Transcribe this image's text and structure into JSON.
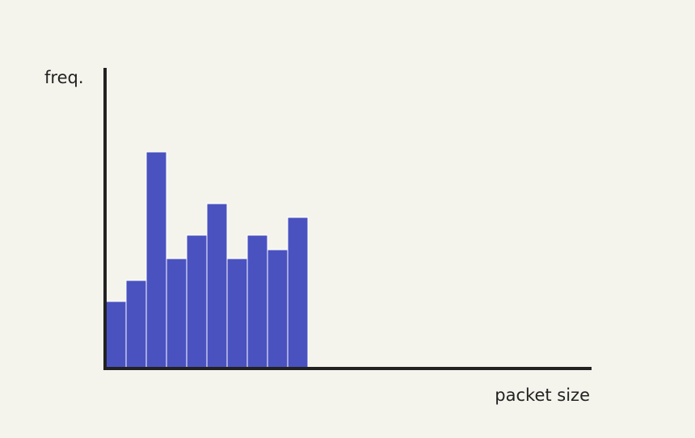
{
  "chart_data": {
    "type": "histogram",
    "ylabel": "freq.",
    "xlabel": "packet size",
    "bins": [
      0,
      1,
      2,
      3,
      4,
      5,
      6,
      7,
      8,
      9,
      10
    ],
    "values": [
      82,
      108,
      267,
      135,
      164,
      203,
      135,
      164,
      146,
      186
    ],
    "color": "#4a52c0",
    "xlim": [
      0,
      24
    ],
    "ylim": [
      0,
      370
    ]
  }
}
